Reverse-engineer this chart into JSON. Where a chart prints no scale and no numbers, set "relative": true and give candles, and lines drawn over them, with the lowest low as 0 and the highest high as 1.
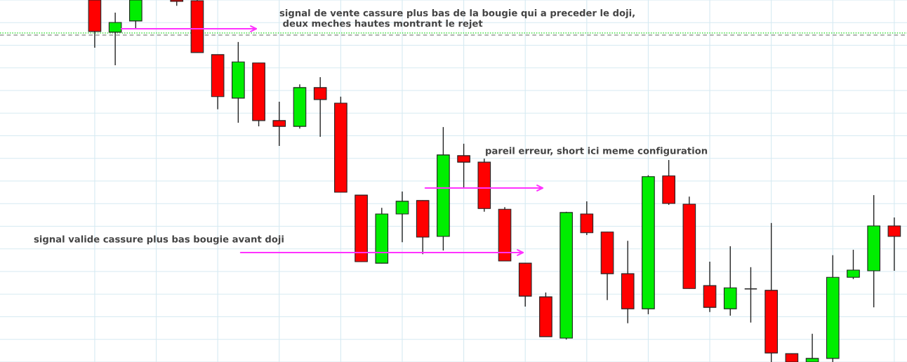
{
  "chart_data": {
    "type": "candlestick",
    "relative": true,
    "grid": true,
    "categories": [
      null,
      null,
      null,
      null,
      null,
      null,
      null,
      null,
      null,
      null,
      null,
      null,
      null,
      null,
      null,
      null,
      null,
      null,
      null,
      null,
      null,
      null,
      null,
      null,
      null,
      null,
      null,
      null,
      null,
      null,
      null,
      null,
      null,
      null,
      null,
      null,
      null,
      null,
      null,
      null
    ],
    "ohlc": [
      [
        1.0,
        1.0,
        0.868,
        0.913
      ],
      [
        0.911,
        0.965,
        0.82,
        0.938
      ],
      [
        0.942,
        1.0,
        0.922,
        1.0
      ],
      null,
      [
        1.0,
        1.0,
        0.984,
        0.996
      ],
      [
        0.998,
        1.0,
        0.855,
        0.855
      ],
      [
        0.849,
        0.849,
        0.698,
        0.733
      ],
      [
        0.729,
        0.884,
        0.661,
        0.829
      ],
      [
        0.826,
        0.826,
        0.651,
        0.667
      ],
      [
        0.667,
        0.719,
        0.597,
        0.651
      ],
      [
        0.651,
        0.767,
        0.645,
        0.758
      ],
      [
        0.758,
        0.787,
        0.622,
        0.725
      ],
      [
        0.715,
        0.733,
        0.469,
        0.469
      ],
      [
        0.461,
        0.461,
        0.277,
        0.277
      ],
      [
        0.273,
        0.426,
        0.273,
        0.409
      ],
      [
        0.409,
        0.471,
        0.331,
        0.444
      ],
      [
        0.446,
        0.446,
        0.298,
        0.345
      ],
      [
        0.347,
        0.649,
        0.308,
        0.572
      ],
      [
        0.57,
        0.603,
        0.481,
        0.552
      ],
      [
        0.552,
        0.562,
        0.415,
        0.424
      ],
      [
        0.422,
        0.428,
        0.279,
        0.279
      ],
      [
        0.273,
        0.273,
        0.153,
        0.182
      ],
      [
        0.18,
        0.192,
        0.07,
        0.07
      ],
      [
        0.066,
        0.415,
        0.062,
        0.413
      ],
      [
        0.409,
        0.444,
        0.351,
        0.357
      ],
      [
        0.359,
        0.359,
        0.171,
        0.244
      ],
      [
        0.244,
        0.335,
        0.107,
        0.147
      ],
      [
        0.147,
        0.516,
        0.132,
        0.512
      ],
      [
        0.514,
        0.558,
        0.434,
        0.438
      ],
      [
        0.436,
        0.457,
        0.203,
        0.203
      ],
      [
        0.211,
        0.277,
        0.138,
        0.151
      ],
      [
        0.147,
        0.32,
        0.128,
        0.205
      ],
      [
        0.202,
        0.262,
        0.109,
        0.202
      ],
      [
        0.198,
        0.384,
        0.0,
        0.025
      ],
      [
        0.023,
        0.023,
        0.0,
        0.0
      ],
      [
        0.0,
        0.078,
        0.0,
        0.01
      ],
      [
        0.01,
        0.295,
        0.0,
        0.234
      ],
      [
        0.234,
        0.31,
        0.229,
        0.254
      ],
      [
        0.252,
        0.461,
        0.151,
        0.376
      ],
      [
        0.376,
        0.399,
        0.252,
        0.347
      ]
    ],
    "colors": [
      "#ff0000",
      "#00ee00",
      "#00ee00",
      "#ff0000",
      "#ff0000",
      "#ff0000",
      "#ff0000",
      "#00ee00",
      "#ff0000",
      "#ff0000",
      "#00ee00",
      "#ff0000",
      "#ff0000",
      "#ff0000",
      "#00ee00",
      "#00ee00",
      "#ff0000",
      "#00ee00",
      "#ff0000",
      "#ff0000",
      "#ff0000",
      "#ff0000",
      "#ff0000",
      "#00ee00",
      "#ff0000",
      "#ff0000",
      "#ff0000",
      "#00ee00",
      "#ff0000",
      "#ff0000",
      "#ff0000",
      "#00ee00",
      "#333333",
      "#ff0000",
      "#ff0000",
      "#00ee00",
      "#00ee00",
      "#00ee00",
      "#00ee00",
      "#ff0000"
    ],
    "ref_lines": [
      {
        "axis": "y",
        "value": 0.909,
        "color": "#33dd33",
        "line_style": "dotted"
      },
      {
        "axis": "y",
        "value": 0.903,
        "color": "#999999",
        "line_style": "dashed"
      }
    ],
    "annotations": [
      "signal de vente cassure plus bas de la bougie qui a preceder le doji,\n deux meches hautes montrant le rejet",
      "pareil erreur, short ici meme configuration",
      "signal valide cassure plus bas bougie avant doji"
    ]
  }
}
